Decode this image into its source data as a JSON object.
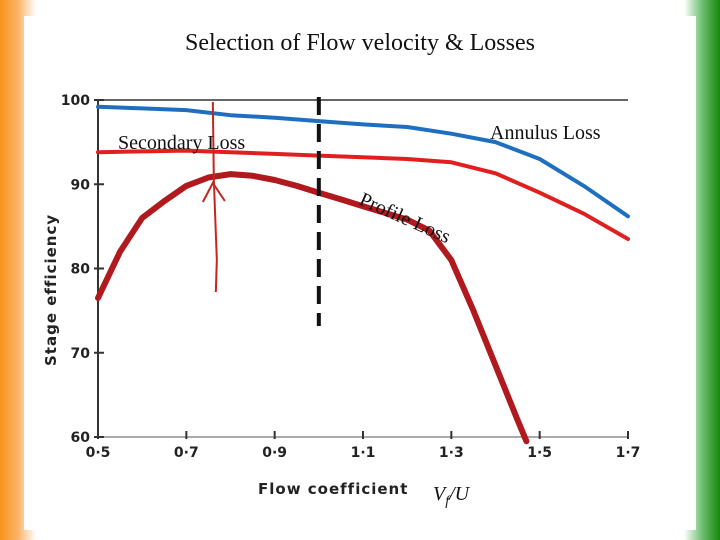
{
  "slide": {
    "title": "Selection of Flow velocity & Losses"
  },
  "chart_data": {
    "type": "line",
    "title": "Selection of Flow velocity & Losses",
    "xlabel": "Flow coefficient",
    "ylabel": "Stage efficiency",
    "xlim": [
      0.5,
      1.7
    ],
    "ylim": [
      60,
      100
    ],
    "x_ticks": [
      "0·5",
      "0·7",
      "0·9",
      "1·1",
      "1·3",
      "1·5",
      "1·7"
    ],
    "y_ticks": [
      "100",
      "90",
      "80",
      "70",
      "60"
    ],
    "x_tick_values": [
      0.5,
      0.7,
      0.9,
      1.1,
      1.3,
      1.5,
      1.7
    ],
    "y_tick_values": [
      100,
      90,
      80,
      70,
      60
    ],
    "series": [
      {
        "name": "Annulus Loss",
        "color": "#1f6fc0",
        "x": [
          0.5,
          0.6,
          0.7,
          0.8,
          0.9,
          1.0,
          1.1,
          1.2,
          1.3,
          1.4,
          1.5,
          1.6,
          1.7
        ],
        "y": [
          99.2,
          99.0,
          98.8,
          98.2,
          97.9,
          97.5,
          97.1,
          96.8,
          96.0,
          95.0,
          93.0,
          89.8,
          86.2
        ]
      },
      {
        "name": "Secondary Loss",
        "color": "#e02020",
        "x": [
          0.5,
          0.6,
          0.7,
          0.8,
          0.9,
          1.0,
          1.1,
          1.2,
          1.3,
          1.4,
          1.5,
          1.6,
          1.7
        ],
        "y": [
          93.8,
          93.9,
          94.0,
          93.8,
          93.6,
          93.4,
          93.2,
          93.0,
          92.6,
          91.3,
          89.0,
          86.5,
          83.5
        ]
      },
      {
        "name": "Profile Loss",
        "color": "#b0191e",
        "x": [
          0.5,
          0.55,
          0.6,
          0.65,
          0.7,
          0.75,
          0.8,
          0.85,
          0.9,
          0.95,
          1.0,
          1.05,
          1.1,
          1.15,
          1.2,
          1.25,
          1.3,
          1.35,
          1.4,
          1.45,
          1.47
        ],
        "y": [
          76.5,
          82.0,
          86.0,
          88.0,
          89.8,
          90.8,
          91.2,
          91.0,
          90.5,
          89.8,
          89.0,
          88.2,
          87.4,
          86.6,
          85.8,
          84.5,
          81.0,
          75.0,
          68.5,
          62.0,
          59.5
        ]
      }
    ],
    "annotations": {
      "annulus": "Annulus Loss",
      "secondary": "Secondary Loss",
      "profile_words": [
        "Profile",
        "Loss"
      ],
      "velocity_label": "V",
      "velocity_sub": "f",
      "velocity_tail": "/U"
    },
    "optimum_marker": {
      "x": 0.76,
      "color": "#c2271f"
    },
    "design_line": {
      "x": 1.0,
      "color": "#111111"
    },
    "grid": false
  }
}
